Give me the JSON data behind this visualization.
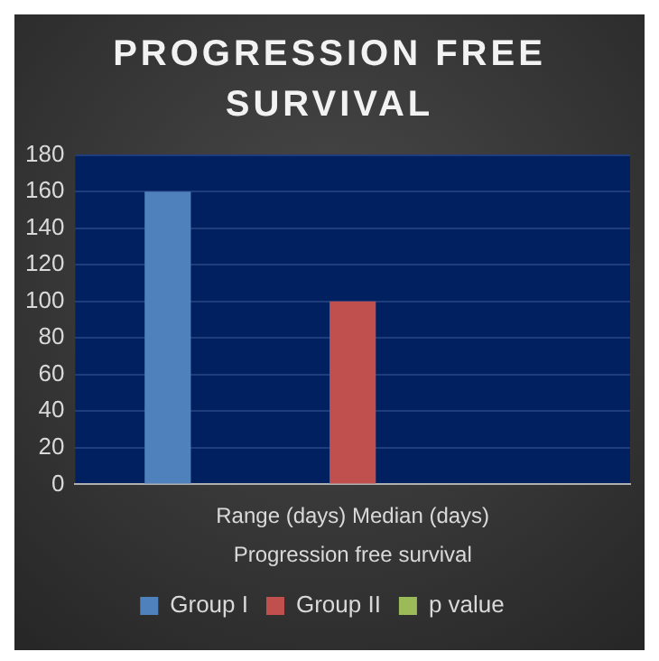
{
  "chart_data": {
    "type": "bar",
    "title": "PROGRESSION FREE SURVIVAL",
    "xlabel": "Progression free survival",
    "categories": [
      "Range (days) Median (days)"
    ],
    "series": [
      {
        "name": "Group I",
        "color": "#4f81bd",
        "values": [
          160
        ]
      },
      {
        "name": "Group II",
        "color": "#c0504d",
        "values": [
          100
        ]
      },
      {
        "name": "p value",
        "color": "#9bbb59",
        "values": [
          null
        ]
      }
    ],
    "ylim": [
      0,
      180
    ],
    "yticks": [
      0,
      20,
      40,
      60,
      80,
      100,
      120,
      140,
      160,
      180
    ],
    "grid": "y",
    "legend": "bottom"
  }
}
